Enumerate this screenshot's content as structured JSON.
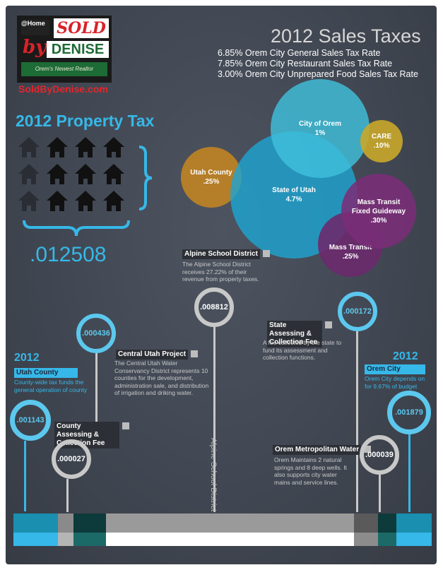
{
  "logo": {
    "at_home": "@Home",
    "sold": "SOLD",
    "by": "by",
    "denise": "DENISE",
    "tagline": "Orem's Newest Realtor",
    "website": "SoldByDenise.com"
  },
  "sales_taxes": {
    "title": "2012 Sales Taxes",
    "rates": [
      "6.85% Orem City General Sales Tax Rate",
      "7.85% Orem City Restaurant Sales Tax Rate",
      "3.00% Orem City Unprepared Food Sales Tax Rate"
    ],
    "bubbles": [
      {
        "name": "City of Orem",
        "value": "1%",
        "color": "#3fc0dc"
      },
      {
        "name": "CARE",
        "value": ".10%",
        "color": "#c9a72a"
      },
      {
        "name": "Utah County",
        "value": ".25%",
        "color": "#c8861f"
      },
      {
        "name": "State of Utah",
        "value": "4.7%",
        "color": "#1fa3cf"
      },
      {
        "name": "Mass Transit Fixed Guideway",
        "value": ".30%",
        "color": "#7a2e77"
      },
      {
        "name": "Mass Transit",
        "value": ".25%",
        "color": "#6b2a6e"
      }
    ]
  },
  "property_tax": {
    "title": "2012 Property Tax",
    "total": ".012508"
  },
  "entities": {
    "alpine": {
      "label": "Alpine School District",
      "desc": "The Alpine School District receives 27.22% of their revenue from property taxes.",
      "rate": ".008812",
      "vertical": "Alpine School District"
    },
    "central_utah": {
      "label": "Central Utah Project",
      "desc": "The Central Utah Water Conservancy District represents 10 counties for the development, administration sale, and distribution of irrigation and driking water.",
      "rate": ".000436"
    },
    "utah_county": {
      "year": "2012",
      "label": "Utah County",
      "desc": "County-wide tax funds the general operation of county",
      "rate": ".001143"
    },
    "county_assessing": {
      "label": "County Assessing & Collection Fee",
      "rate": ".000027"
    },
    "state_assessing": {
      "label": "State Assessing & Collection Fee",
      "desc": "A fee collected by the state to fund its assessment and collection functions.",
      "rate": ".000172"
    },
    "orem_city": {
      "year": "2012",
      "label": "Orem City",
      "desc": "Orem City depends on for 9.67% of budget",
      "rate": ".001879"
    },
    "orem_metro": {
      "label": "Orem Metropolitan Water",
      "desc": "Orem Maintains 2 natural springs and 8 deep wells. It also supports city water mains and service lines.",
      "rate": ".000039"
    }
  },
  "colors": {
    "blue": "#36b8e8",
    "ring_blue": "#5cc8ee",
    "ring_gray": "#c8c8c8",
    "red": "#e3262c",
    "board": "#414752"
  }
}
